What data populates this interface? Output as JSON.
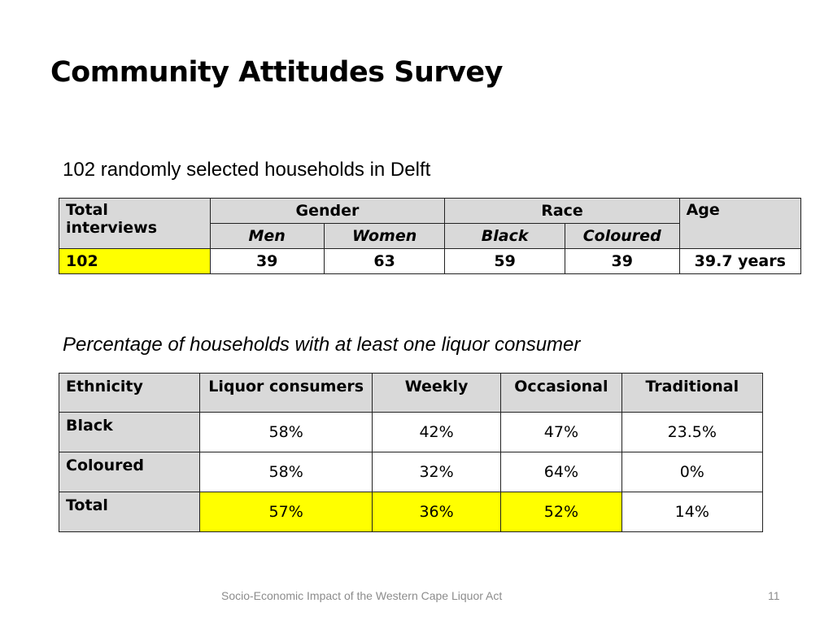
{
  "slide": {
    "title": "Community Attitudes Survey",
    "subtitle": "102 randomly selected households in Delft",
    "subtitle2": "Percentage of households with at least one liquor consumer",
    "footer": "Socio-Economic Impact of the Western Cape Liquor Act",
    "page_number": "11"
  },
  "table1": {
    "headers": {
      "total": "Total interviews",
      "gender": "Gender",
      "race": "Race",
      "age": "Age",
      "men": "Men",
      "women": "Women",
      "black": "Black",
      "coloured": "Coloured"
    },
    "row": {
      "total": "102",
      "men": "39",
      "women": "63",
      "black": "59",
      "coloured": "39",
      "age": "39.7 years"
    }
  },
  "table2": {
    "headers": [
      "Ethnicity",
      "Liquor consumers",
      "Weekly",
      "Occasional",
      "Traditional"
    ],
    "rows": [
      {
        "label": "Black",
        "values": [
          "58%",
          "42%",
          "47%",
          "23.5%"
        ]
      },
      {
        "label": "Coloured",
        "values": [
          "58%",
          "32%",
          "64%",
          "0%"
        ]
      },
      {
        "label": "Total",
        "values": [
          "57%",
          "36%",
          "52%",
          "14%"
        ]
      }
    ]
  },
  "colors": {
    "header_fill": "#d9d9d9",
    "highlight": "#ffff00",
    "footer_text": "#8c8c8c"
  }
}
